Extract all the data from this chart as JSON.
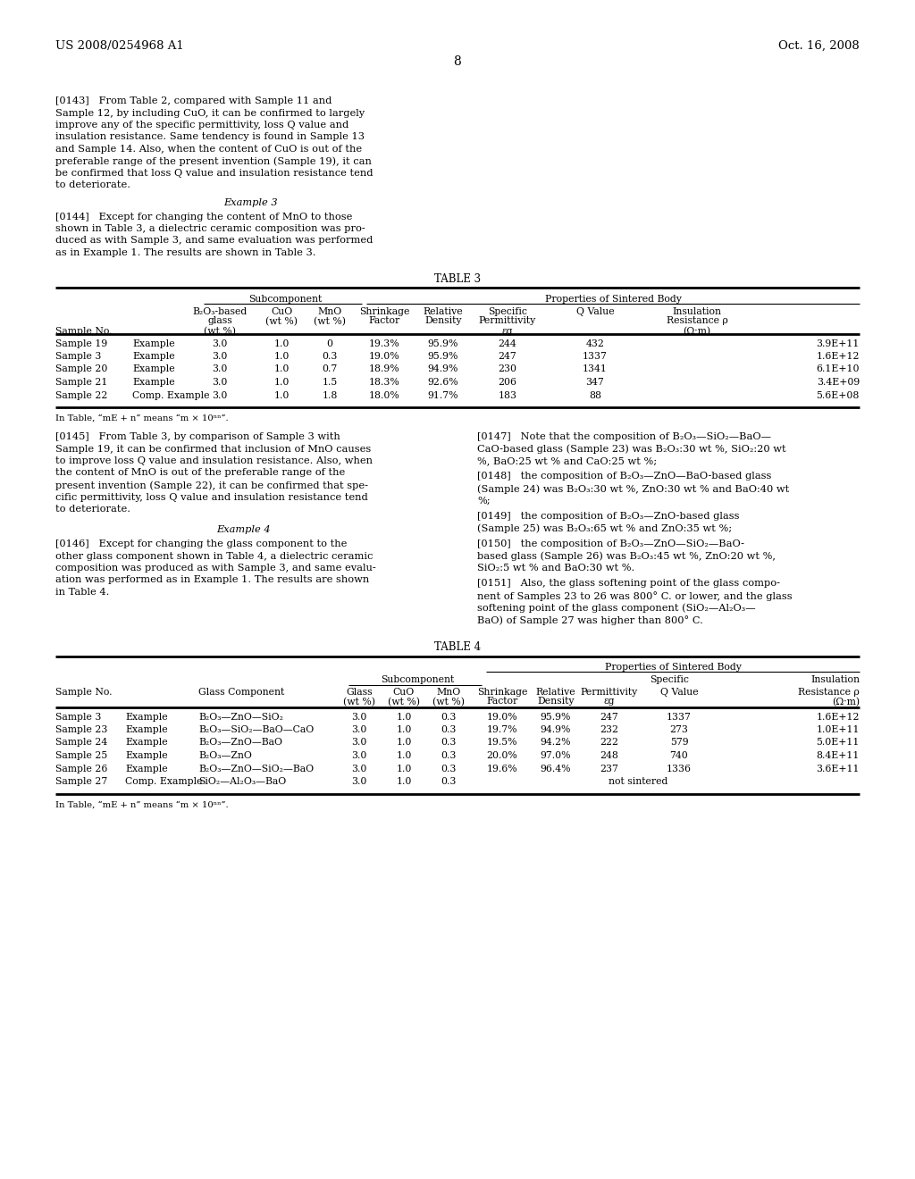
{
  "page_number": "8",
  "left_header": "US 2008/0254968 A1",
  "right_header": "Oct. 16, 2008",
  "bg_color": "#ffffff",
  "text_color": "#000000",
  "para_143_lines": [
    "[0143]   From Table 2, compared with Sample 11 and",
    "Sample 12, by including CuO, it can be confirmed to largely",
    "improve any of the specific permittivity, loss Q value and",
    "insulation resistance. Same tendency is found in Sample 13",
    "and Sample 14. Also, when the content of CuO is out of the",
    "preferable range of the present invention (Sample 19), it can",
    "be confirmed that loss Q value and insulation resistance tend",
    "to deteriorate."
  ],
  "example3_heading": "Example 3",
  "para_144_lines": [
    "[0144]   Except for changing the content of MnO to those",
    "shown in Table 3, a dielectric ceramic composition was pro-",
    "duced as with Sample 3, and same evaluation was performed",
    "as in Example 1. The results are shown in Table 3."
  ],
  "table3_title": "TABLE 3",
  "table3_data": [
    [
      "Sample 19",
      "Example",
      "3.0",
      "1.0",
      "0",
      "19.3%",
      "95.9%",
      "244",
      "432",
      "3.9E+11"
    ],
    [
      "Sample 3",
      "Example",
      "3.0",
      "1.0",
      "0.3",
      "19.0%",
      "95.9%",
      "247",
      "1337",
      "1.6E+12"
    ],
    [
      "Sample 20",
      "Example",
      "3.0",
      "1.0",
      "0.7",
      "18.9%",
      "94.9%",
      "230",
      "1341",
      "6.1E+10"
    ],
    [
      "Sample 21",
      "Example",
      "3.0",
      "1.0",
      "1.5",
      "18.3%",
      "92.6%",
      "206",
      "347",
      "3.4E+09"
    ],
    [
      "Sample 22",
      "Comp. Example",
      "3.0",
      "1.0",
      "1.8",
      "18.0%",
      "91.7%",
      "183",
      "88",
      "5.6E+08"
    ]
  ],
  "table_footnote": "In Table, “mE + n” means “m × 10ⁿⁿ”.",
  "para_145_lines": [
    "[0145]   From Table 3, by comparison of Sample 3 with",
    "Sample 19, it can be confirmed that inclusion of MnO causes",
    "to improve loss Q value and insulation resistance. Also, when",
    "the content of MnO is out of the preferable range of the",
    "present invention (Sample 22), it can be confirmed that spe-",
    "cific permittivity, loss Q value and insulation resistance tend",
    "to deteriorate."
  ],
  "example4_heading": "Example 4",
  "para_146_lines": [
    "[0146]   Except for changing the glass component to the",
    "other glass component shown in Table 4, a dielectric ceramic",
    "composition was produced as with Sample 3, and same evalu-",
    "ation was performed as in Example 1. The results are shown",
    "in Table 4."
  ],
  "para_147_lines": [
    "[0147]   Note that the composition of B₂O₃—SiO₂—BaO—",
    "CaO-based glass (Sample 23) was B₂O₃:30 wt %, SiO₂:20 wt",
    "%, BaO:25 wt % and CaO:25 wt %;"
  ],
  "para_148_lines": [
    "[0148]   the composition of B₂O₃—ZnO—BaO-based glass",
    "(Sample 24) was B₂O₃:30 wt %, ZnO:30 wt % and BaO:40 wt",
    "%;"
  ],
  "para_149_lines": [
    "[0149]   the composition of B₂O₃—ZnO-based glass",
    "(Sample 25) was B₂O₃:65 wt % and ZnO:35 wt %;"
  ],
  "para_150_lines": [
    "[0150]   the composition of B₂O₃—ZnO—SiO₂—BaO-",
    "based glass (Sample 26) was B₂O₃:45 wt %, ZnO:20 wt %,",
    "SiO₂:5 wt % and BaO:30 wt %."
  ],
  "para_151_lines": [
    "[0151]   Also, the glass softening point of the glass compo-",
    "nent of Samples 23 to 26 was 800° C. or lower, and the glass",
    "softening point of the glass component (SiO₂—Al₂O₃—",
    "BaO) of Sample 27 was higher than 800° C."
  ],
  "table4_title": "TABLE 4",
  "table4_data": [
    [
      "Sample 3",
      "Example",
      "B₂O₃—ZnO—SiO₂",
      "3.0",
      "1.0",
      "0.3",
      "19.0%",
      "95.9%",
      "247",
      "1337",
      "1.6E+12"
    ],
    [
      "Sample 23",
      "Example",
      "B₂O₃—SiO₂—BaO—CaO",
      "3.0",
      "1.0",
      "0.3",
      "19.7%",
      "94.9%",
      "232",
      "273",
      "1.0E+11"
    ],
    [
      "Sample 24",
      "Example",
      "B₂O₃—ZnO—BaO",
      "3.0",
      "1.0",
      "0.3",
      "19.5%",
      "94.2%",
      "222",
      "579",
      "5.0E+11"
    ],
    [
      "Sample 25",
      "Example",
      "B₂O₃—ZnO",
      "3.0",
      "1.0",
      "0.3",
      "20.0%",
      "97.0%",
      "248",
      "740",
      "8.4E+11"
    ],
    [
      "Sample 26",
      "Example",
      "B₂O₃—ZnO—SiO₂—BaO",
      "3.0",
      "1.0",
      "0.3",
      "19.6%",
      "96.4%",
      "237",
      "1336",
      "3.6E+11"
    ],
    [
      "Sample 27",
      "Comp. Example",
      "SiO₂—Al₂O₃—BaO",
      "3.0",
      "1.0",
      "0.3",
      "",
      "",
      "not sintered",
      "",
      ""
    ]
  ]
}
